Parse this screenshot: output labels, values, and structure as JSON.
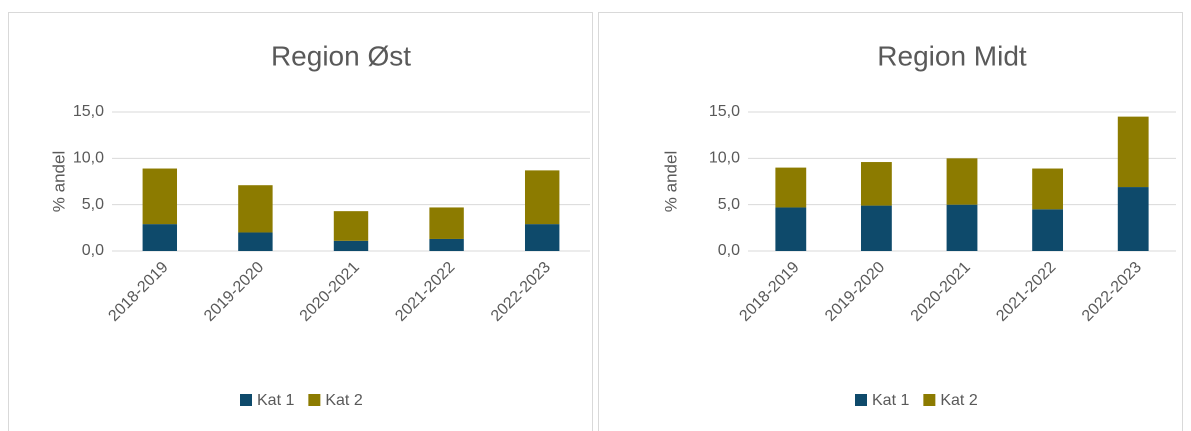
{
  "chart_data": [
    {
      "type": "bar",
      "stacked": true,
      "title": "Region Øst",
      "y_label": "% andel",
      "categories": [
        "2018-2019",
        "2019-2020",
        "2020-2021",
        "2021-2022",
        "2022-2023"
      ],
      "series": [
        {
          "name": "Kat 1",
          "color": "#0e4a6b",
          "values": [
            2.9,
            2.0,
            1.1,
            1.3,
            2.9
          ]
        },
        {
          "name": "Kat 2",
          "color": "#8c7b00",
          "values": [
            6.0,
            5.1,
            3.2,
            3.4,
            5.8
          ]
        }
      ],
      "ylim": [
        0,
        15
      ],
      "yticks": [
        {
          "value": 0,
          "label": "0,0"
        },
        {
          "value": 5,
          "label": "5,0"
        },
        {
          "value": 10,
          "label": "10,0"
        },
        {
          "value": 15,
          "label": "15,0"
        }
      ],
      "grid": true,
      "legend": "bottom"
    },
    {
      "type": "bar",
      "stacked": true,
      "title": "Region Midt",
      "y_label": "% andel",
      "categories": [
        "2018-2019",
        "2019-2020",
        "2020-2021",
        "2021-2022",
        "2022-2023"
      ],
      "series": [
        {
          "name": "Kat 1",
          "color": "#0e4a6b",
          "values": [
            4.7,
            4.9,
            5.0,
            4.5,
            6.9
          ]
        },
        {
          "name": "Kat 2",
          "color": "#8c7b00",
          "values": [
            4.3,
            4.7,
            5.0,
            4.4,
            7.6
          ]
        }
      ],
      "ylim": [
        0,
        15
      ],
      "yticks": [
        {
          "value": 0,
          "label": "0,0"
        },
        {
          "value": 5,
          "label": "5,0"
        },
        {
          "value": 10,
          "label": "10,0"
        },
        {
          "value": 15,
          "label": "15,0"
        }
      ],
      "grid": true,
      "legend": "bottom"
    }
  ]
}
